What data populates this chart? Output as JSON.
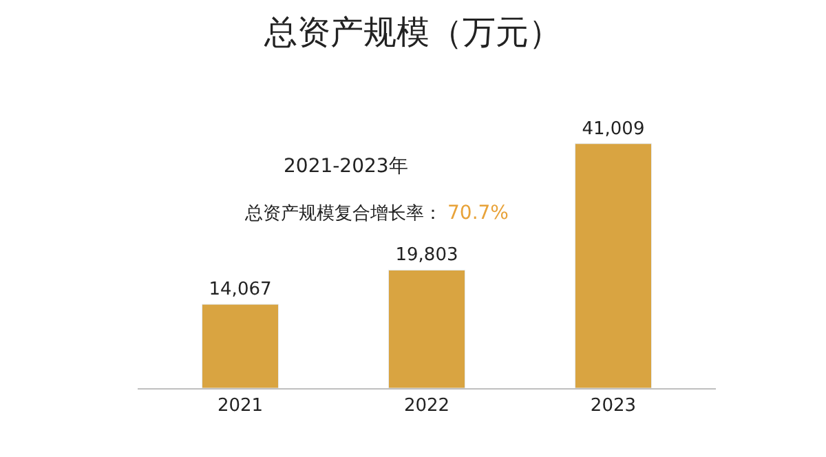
{
  "chart_data": {
    "type": "bar",
    "title": "总资产规模（万元）",
    "categories": [
      "2021",
      "2022",
      "2023"
    ],
    "values": [
      14067,
      19803,
      41009
    ],
    "value_labels": [
      "14,067",
      "19,803",
      "41,009"
    ],
    "color": "#d9a441",
    "annotations": [
      "2021-2023年",
      "总资产规模复合增长率：",
      "70.7%"
    ]
  }
}
